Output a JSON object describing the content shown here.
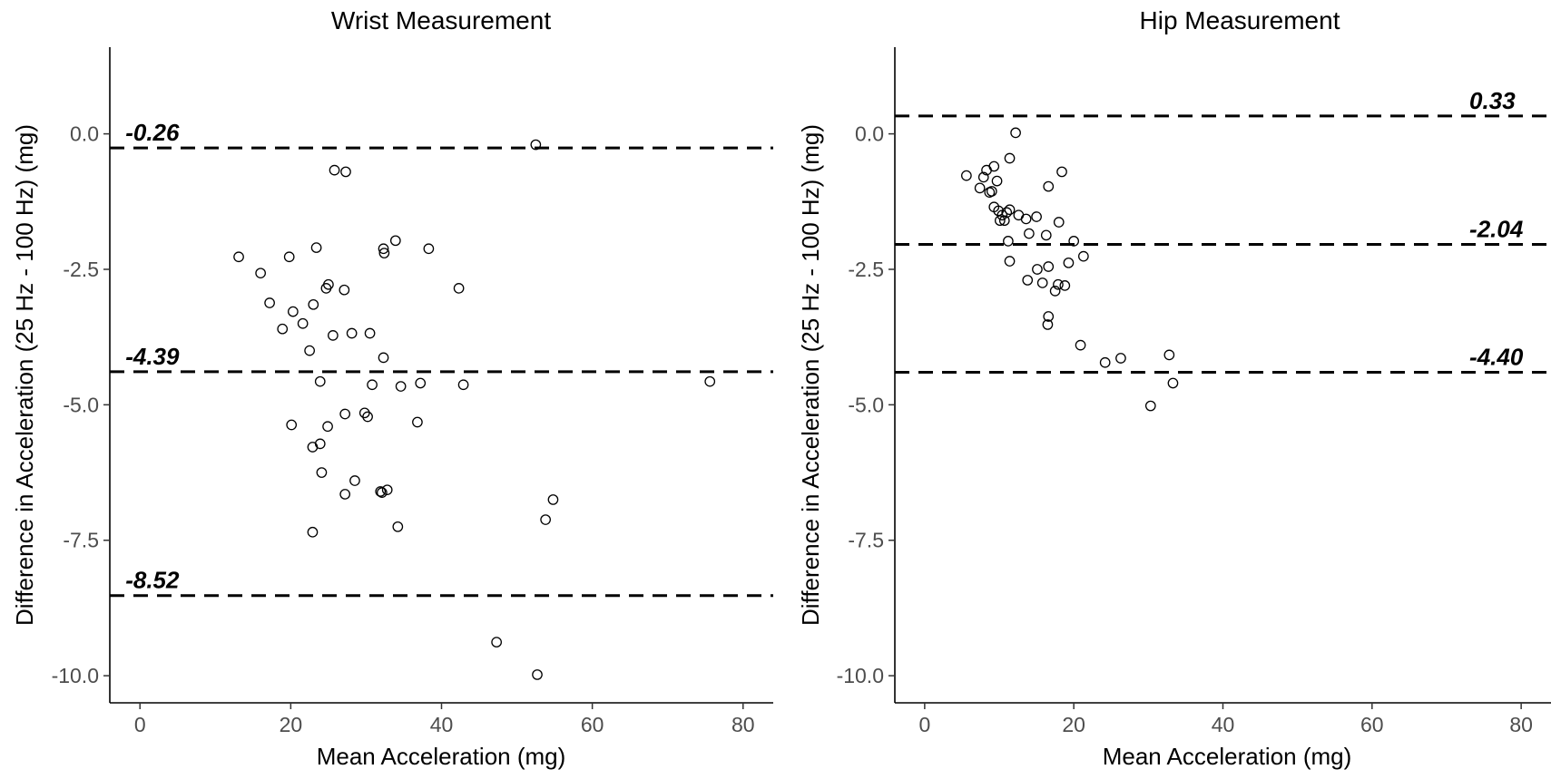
{
  "chart_data": [
    {
      "type": "scatter",
      "title": "Wrist Measurement",
      "xlabel": "Mean Acceleration (mg)",
      "ylabel": "Difference in Acceleration (25 Hz - 100 Hz) (mg)",
      "xlim": [
        -4,
        84
      ],
      "ylim": [
        -10.5,
        1.6
      ],
      "xticks": [
        0,
        20,
        40,
        60,
        80
      ],
      "xtick_labels": [
        "0",
        "20",
        "40",
        "60",
        "80"
      ],
      "yticks": [
        0.0,
        -2.5,
        -5.0,
        -7.5,
        -10.0
      ],
      "ytick_labels": [
        "0.0",
        "-2.5",
        "-5.0",
        "-7.5",
        "-10.0"
      ],
      "grid": false,
      "ref_lines": [
        {
          "y": -0.26,
          "label": "-0.26",
          "label_x": 0
        },
        {
          "y": -4.39,
          "label": "-4.39",
          "label_x": 0
        },
        {
          "y": -8.52,
          "label": "-8.52",
          "label_x": 0
        }
      ],
      "points": [
        [
          52.5,
          -0.2
        ],
        [
          25.8,
          -0.67
        ],
        [
          27.3,
          -0.7
        ],
        [
          13.1,
          -2.27
        ],
        [
          16.0,
          -2.57
        ],
        [
          19.8,
          -2.27
        ],
        [
          23.4,
          -2.1
        ],
        [
          32.3,
          -2.12
        ],
        [
          32.4,
          -2.2
        ],
        [
          33.9,
          -1.97
        ],
        [
          38.3,
          -2.12
        ],
        [
          17.2,
          -3.12
        ],
        [
          18.9,
          -3.6
        ],
        [
          20.3,
          -3.28
        ],
        [
          21.6,
          -3.5
        ],
        [
          23.0,
          -3.15
        ],
        [
          24.7,
          -2.85
        ],
        [
          25.0,
          -2.78
        ],
        [
          27.1,
          -2.88
        ],
        [
          42.3,
          -2.85
        ],
        [
          22.5,
          -4.0
        ],
        [
          25.6,
          -3.72
        ],
        [
          28.1,
          -3.68
        ],
        [
          30.5,
          -3.68
        ],
        [
          32.3,
          -4.13
        ],
        [
          23.9,
          -4.57
        ],
        [
          30.8,
          -4.63
        ],
        [
          34.6,
          -4.66
        ],
        [
          37.2,
          -4.6
        ],
        [
          42.9,
          -4.63
        ],
        [
          75.6,
          -4.57
        ],
        [
          20.1,
          -5.37
        ],
        [
          22.9,
          -5.78
        ],
        [
          23.9,
          -5.72
        ],
        [
          24.9,
          -5.4
        ],
        [
          27.2,
          -5.17
        ],
        [
          29.8,
          -5.15
        ],
        [
          30.2,
          -5.22
        ],
        [
          36.8,
          -5.32
        ],
        [
          24.1,
          -6.25
        ],
        [
          28.5,
          -6.4
        ],
        [
          27.2,
          -6.65
        ],
        [
          31.9,
          -6.6
        ],
        [
          32.1,
          -6.62
        ],
        [
          32.8,
          -6.57
        ],
        [
          54.8,
          -6.75
        ],
        [
          53.8,
          -7.12
        ],
        [
          22.9,
          -7.35
        ],
        [
          34.2,
          -7.25
        ],
        [
          47.3,
          -9.38
        ],
        [
          52.7,
          -9.98
        ]
      ]
    },
    {
      "type": "scatter",
      "title": "Hip Measurement",
      "xlabel": "Mean Acceleration (mg)",
      "ylabel": "Difference in Acceleration (25 Hz - 100 Hz) (mg)",
      "xlim": [
        -4,
        84
      ],
      "ylim": [
        -10.5,
        1.6
      ],
      "xticks": [
        0,
        20,
        40,
        60,
        80
      ],
      "xtick_labels": [
        "0",
        "20",
        "40",
        "60",
        "80"
      ],
      "yticks": [
        0.0,
        -2.5,
        -5.0,
        -7.5,
        -10.0
      ],
      "ytick_labels": [
        "0.0",
        "-2.5",
        "-5.0",
        "-7.5",
        "-10.0"
      ],
      "grid": false,
      "ref_lines": [
        {
          "y": 0.33,
          "label": "0.33",
          "label_x": 75
        },
        {
          "y": -2.04,
          "label": "-2.04",
          "label_x": 75
        },
        {
          "y": -4.4,
          "label": "-4.40",
          "label_x": 75
        }
      ],
      "points": [
        [
          12.2,
          0.02
        ],
        [
          11.4,
          -0.45
        ],
        [
          9.3,
          -0.6
        ],
        [
          8.3,
          -0.67
        ],
        [
          7.9,
          -0.8
        ],
        [
          5.6,
          -0.77
        ],
        [
          9.7,
          -0.87
        ],
        [
          7.4,
          -1.0
        ],
        [
          8.7,
          -1.08
        ],
        [
          9.0,
          -1.06
        ],
        [
          16.6,
          -0.97
        ],
        [
          18.4,
          -0.7
        ],
        [
          9.3,
          -1.35
        ],
        [
          9.9,
          -1.42
        ],
        [
          10.4,
          -1.5
        ],
        [
          10.1,
          -1.6
        ],
        [
          11.0,
          -1.45
        ],
        [
          11.4,
          -1.4
        ],
        [
          10.7,
          -1.6
        ],
        [
          12.6,
          -1.5
        ],
        [
          13.6,
          -1.57
        ],
        [
          15.0,
          -1.53
        ],
        [
          18.0,
          -1.63
        ],
        [
          14.0,
          -1.84
        ],
        [
          16.3,
          -1.87
        ],
        [
          11.2,
          -1.98
        ],
        [
          20.0,
          -1.98
        ],
        [
          21.3,
          -2.26
        ],
        [
          11.4,
          -2.35
        ],
        [
          15.1,
          -2.5
        ],
        [
          16.6,
          -2.45
        ],
        [
          19.3,
          -2.38
        ],
        [
          13.8,
          -2.7
        ],
        [
          15.8,
          -2.75
        ],
        [
          17.5,
          -2.9
        ],
        [
          17.9,
          -2.78
        ],
        [
          18.8,
          -2.8
        ],
        [
          16.6,
          -3.37
        ],
        [
          16.5,
          -3.52
        ],
        [
          20.9,
          -3.9
        ],
        [
          24.2,
          -4.22
        ],
        [
          26.3,
          -4.14
        ],
        [
          32.8,
          -4.08
        ],
        [
          33.3,
          -4.6
        ],
        [
          30.3,
          -5.02
        ]
      ]
    }
  ]
}
